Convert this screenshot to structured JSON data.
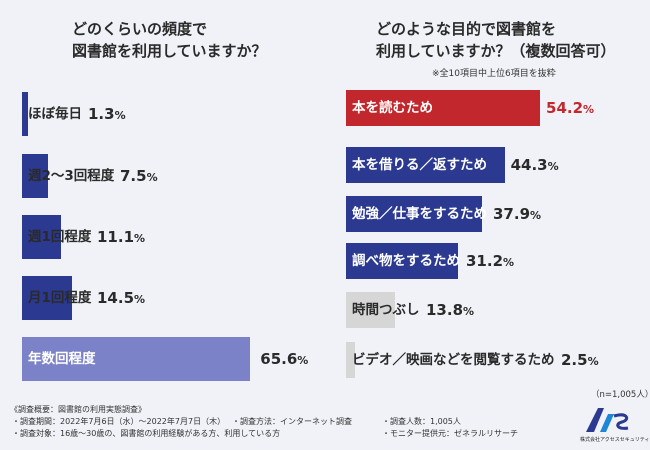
{
  "chart_data": [
    {
      "type": "bar",
      "title": "どのくらいの頻度で図書館を利用していますか？",
      "categories": [
        "ほぼ毎日",
        "週2〜3回程度",
        "週1回程度",
        "月1回程度",
        "年数回程度"
      ],
      "values": [
        1.3,
        7.5,
        11.1,
        14.5,
        65.6
      ],
      "value_labels": [
        "1.3%",
        "7.5%",
        "11.1%",
        "14.5%",
        "65.6%"
      ],
      "ylim": [
        0,
        100
      ],
      "colors": [
        "#2b3990",
        "#2b3990",
        "#2b3990",
        "#2b3990",
        "#7b82c8"
      ]
    },
    {
      "type": "bar",
      "title": "どのような目的で図書館を利用していますか？（複数回答可）",
      "note": "※全10項目中上位6項目を抜粋",
      "categories": [
        "本を読むため",
        "本を借りる／返すため",
        "勉強／仕事をするため",
        "調べ物をするため",
        "時間つぶし",
        "ビデオ／映画などを閲覧するため"
      ],
      "values": [
        54.2,
        44.3,
        37.9,
        31.2,
        13.8,
        2.5
      ],
      "value_labels": [
        "54.2%",
        "44.3%",
        "37.9%",
        "31.2%",
        "13.8%",
        "2.5%"
      ],
      "ylim": [
        0,
        100
      ],
      "colors": [
        "#c1272d",
        "#2b3990",
        "#2b3990",
        "#2b3990",
        "#d6d6d6",
        "#d6d6d6"
      ],
      "sample_size": "（n=1,005人）"
    }
  ],
  "left_title_line1": "どのくらいの頻度で",
  "left_title_line2": "図書館を利用していますか？",
  "right_title_line1": "どのような目的で図書館を",
  "right_title_line2": "利用していますか？（複数回答可）",
  "footer": {
    "heading": "《調査概要：図書館の利用実態調査》",
    "period": "・調査期間：2022年7月6日（水）〜2022年7月7日（木）",
    "method": "・調査方法：インターネット調査",
    "count": "・調査人数：1,005人",
    "target": "・調査対象：16歳〜30歳の、図書館の利用経験がある方、利用している方",
    "monitor": "・モニター提供元：ゼネラルリサーチ"
  },
  "logo": {
    "mark": "A/S",
    "company": "株式会社アクセスセキュリティ"
  }
}
